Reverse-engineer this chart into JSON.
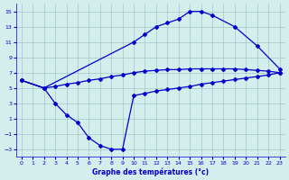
{
  "xlabel": "Graphe des températures (°c)",
  "background_color": "#d4eded",
  "grid_color": "#a0c8c8",
  "line_color": "#0000cc",
  "xlim": [
    -0.5,
    23.5
  ],
  "ylim": [
    -4,
    16
  ],
  "yticks": [
    -3,
    -1,
    1,
    3,
    5,
    7,
    9,
    11,
    13,
    15
  ],
  "xticks": [
    0,
    1,
    2,
    3,
    4,
    5,
    6,
    7,
    8,
    9,
    10,
    11,
    12,
    13,
    14,
    15,
    16,
    17,
    18,
    19,
    20,
    21,
    22,
    23
  ],
  "curve_max_x": [
    0,
    2,
    10,
    11,
    12,
    13,
    14,
    15,
    16,
    17,
    19,
    21,
    23
  ],
  "curve_max_y": [
    6.0,
    5.0,
    11.0,
    12.0,
    13.0,
    13.5,
    14.0,
    15.0,
    15.0,
    14.5,
    13.0,
    10.5,
    7.5
  ],
  "curve_avg_x": [
    0,
    2,
    3,
    4,
    5,
    6,
    7,
    8,
    9,
    10,
    11,
    12,
    13,
    14,
    15,
    16,
    17,
    18,
    19,
    20,
    21,
    22,
    23
  ],
  "curve_avg_y": [
    6.0,
    5.0,
    5.2,
    5.5,
    5.7,
    6.0,
    6.2,
    6.5,
    6.7,
    7.0,
    7.2,
    7.3,
    7.4,
    7.4,
    7.5,
    7.5,
    7.5,
    7.5,
    7.5,
    7.4,
    7.3,
    7.2,
    7.0
  ],
  "curve_min_x": [
    0,
    2,
    3,
    4,
    5,
    6,
    7,
    8,
    9,
    10,
    11,
    12,
    13,
    14,
    15,
    16,
    17,
    18,
    19,
    20,
    21,
    22,
    23
  ],
  "curve_min_y": [
    6.0,
    5.0,
    3.0,
    1.5,
    0.5,
    -1.5,
    -2.5,
    -3.0,
    -3.0,
    4.0,
    4.3,
    4.6,
    4.8,
    5.0,
    5.2,
    5.5,
    5.7,
    5.9,
    6.1,
    6.3,
    6.5,
    6.7,
    7.0
  ]
}
